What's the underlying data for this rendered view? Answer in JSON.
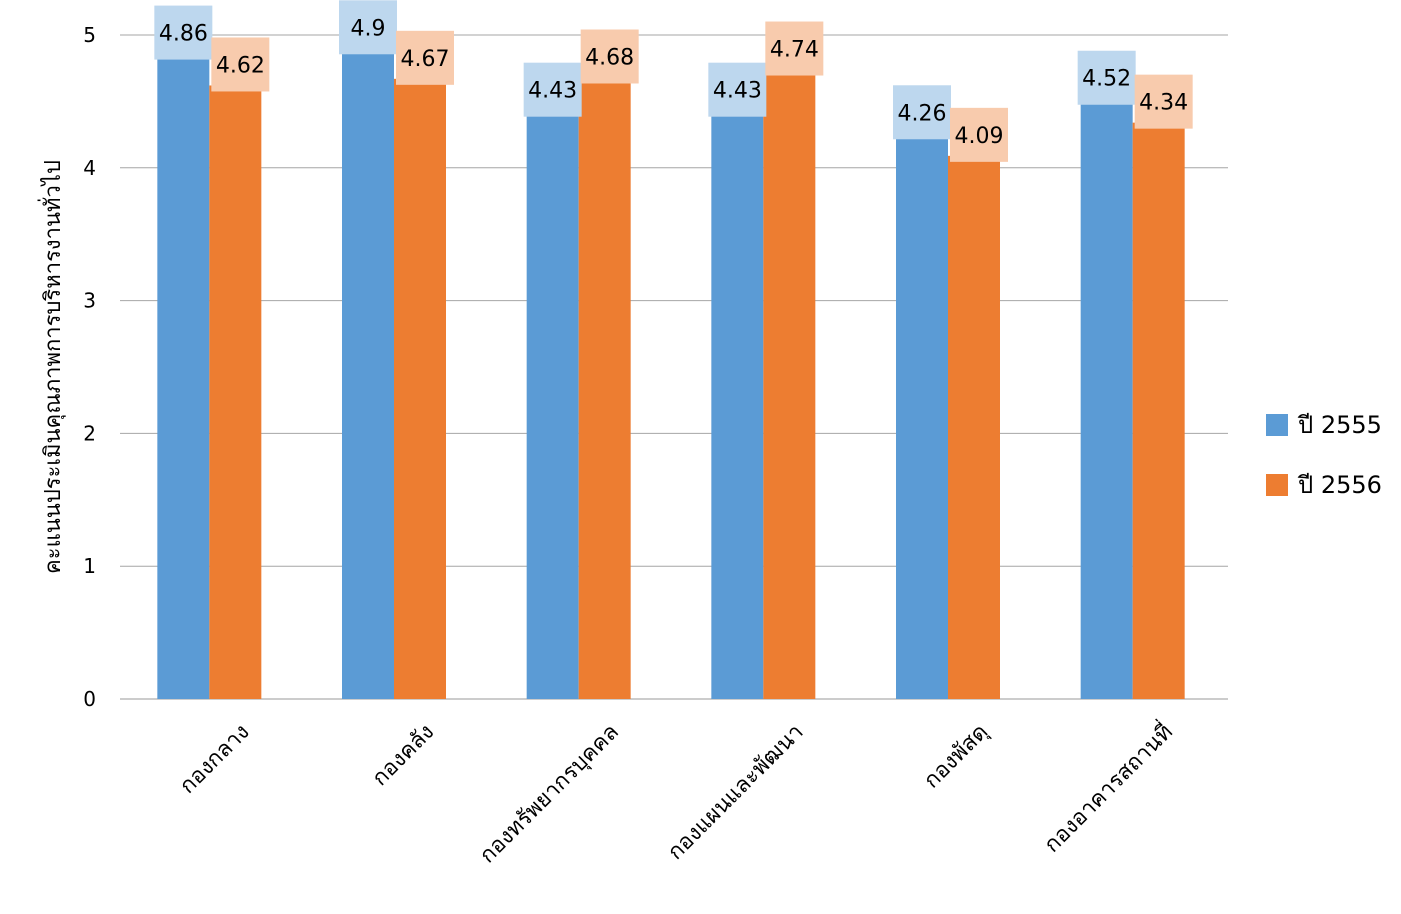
{
  "chart_data": {
    "type": "bar",
    "title": "",
    "xlabel": "",
    "ylabel": "คะแนนประเมินคุณภาพการบริหารงานทั่วไป",
    "ylim": [
      0,
      5
    ],
    "yticks": [
      0,
      1,
      2,
      3,
      4,
      5
    ],
    "grid": true,
    "legend_position": "right",
    "categories": [
      "กองกลาง",
      "กองคลัง",
      "กองทรัพยากรบุคคล",
      "กองแผนและพัฒนา",
      "กองพัสดุ",
      "กองอาคารสถานที่"
    ],
    "series": [
      {
        "name": "ปี 2555",
        "color": "#5B9BD5",
        "label_bg": "#BDD7EE",
        "values": [
          4.86,
          4.9,
          4.43,
          4.43,
          4.26,
          4.52
        ],
        "labels": [
          "4.86",
          "4.9",
          "4.43",
          "4.43",
          "4.26",
          "4.52"
        ]
      },
      {
        "name": "ปี 2556",
        "color": "#ED7D31",
        "label_bg": "#F8CBAD",
        "values": [
          4.62,
          4.67,
          4.68,
          4.74,
          4.09,
          4.34
        ],
        "labels": [
          "4.62",
          "4.67",
          "4.68",
          "4.74",
          "4.09",
          "4.34"
        ]
      }
    ]
  }
}
